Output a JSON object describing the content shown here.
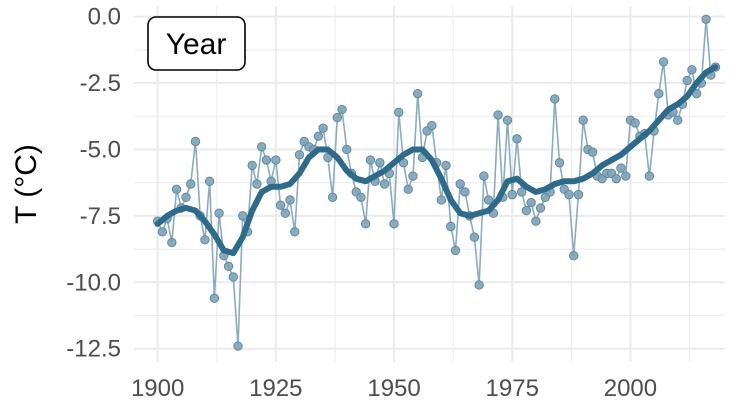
{
  "chart_data": {
    "type": "line",
    "title": "",
    "annotation": "Year",
    "xlabel": "",
    "ylabel": "T (°C)",
    "xlim": [
      1895,
      2020
    ],
    "ylim": [
      -13,
      0.4
    ],
    "x_ticks": [
      1900,
      1925,
      1950,
      1975,
      2000
    ],
    "y_ticks": [
      0.0,
      -2.5,
      -5.0,
      -7.5,
      -10.0,
      -12.5
    ],
    "y_tick_labels": [
      "0.0",
      "-2.5",
      "-5.0",
      "-7.5",
      "-10.0",
      "-12.5"
    ],
    "grid": true,
    "colors": {
      "points": "#8aacbf",
      "smooth": "#2e6b8a",
      "grid": "#ebebeb"
    },
    "series": [
      {
        "kind": "observed",
        "x": [
          1900,
          1901,
          1902,
          1903,
          1904,
          1905,
          1906,
          1907,
          1908,
          1909,
          1910,
          1911,
          1912,
          1913,
          1914,
          1915,
          1916,
          1917,
          1918,
          1919,
          1920,
          1921,
          1922,
          1923,
          1924,
          1925,
          1926,
          1927,
          1928,
          1929,
          1930,
          1931,
          1932,
          1933,
          1934,
          1935,
          1936,
          1937,
          1938,
          1939,
          1940,
          1941,
          1942,
          1943,
          1944,
          1945,
          1946,
          1947,
          1948,
          1949,
          1950,
          1951,
          1952,
          1953,
          1954,
          1955,
          1956,
          1957,
          1958,
          1959,
          1960,
          1961,
          1962,
          1963,
          1964,
          1965,
          1966,
          1967,
          1968,
          1969,
          1970,
          1971,
          1972,
          1973,
          1974,
          1975,
          1976,
          1977,
          1978,
          1979,
          1980,
          1981,
          1982,
          1983,
          1984,
          1985,
          1986,
          1987,
          1988,
          1989,
          1990,
          1991,
          1992,
          1993,
          1994,
          1995,
          1996,
          1997,
          1998,
          1999,
          2000,
          2001,
          2002,
          2003,
          2004,
          2005,
          2006,
          2007,
          2008,
          2009,
          2010,
          2011,
          2012,
          2013,
          2014,
          2015,
          2016,
          2017,
          2018
        ],
        "y": [
          -7.7,
          -8.1,
          -7.6,
          -8.5,
          -6.5,
          -7.2,
          -6.8,
          -6.3,
          -4.7,
          -7.5,
          -8.4,
          -6.2,
          -10.6,
          -7.4,
          -9.0,
          -9.4,
          -9.8,
          -12.4,
          -7.5,
          -8.1,
          -5.6,
          -6.3,
          -4.9,
          -5.4,
          -6.2,
          -5.4,
          -7.1,
          -7.4,
          -6.9,
          -8.1,
          -5.2,
          -4.7,
          -4.9,
          -5.0,
          -4.5,
          -4.2,
          -5.3,
          -6.8,
          -3.8,
          -3.5,
          -5.0,
          -5.9,
          -6.6,
          -6.8,
          -7.8,
          -5.4,
          -6.2,
          -5.5,
          -6.3,
          -5.9,
          -7.8,
          -3.6,
          -5.5,
          -6.5,
          -6.0,
          -2.9,
          -5.3,
          -4.3,
          -4.1,
          -5.5,
          -6.9,
          -5.6,
          -7.9,
          -8.8,
          -6.3,
          -6.6,
          -7.5,
          -8.3,
          -10.1,
          -6.0,
          -6.9,
          -7.4,
          -3.7,
          -6.8,
          -3.9,
          -6.7,
          -4.6,
          -6.6,
          -7.3,
          -7.0,
          -7.7,
          -7.2,
          -6.8,
          -6.6,
          -3.1,
          -5.5,
          -6.5,
          -6.7,
          -9.0,
          -6.7,
          -3.9,
          -5.0,
          -5.1,
          -6.0,
          -6.1,
          -5.9,
          -5.9,
          -6.1,
          -5.7,
          -6.0,
          -3.9,
          -4.0,
          -4.5,
          -4.4,
          -6.0,
          -4.3,
          -2.9,
          -1.7,
          -3.7,
          -3.6,
          -3.9,
          -3.3,
          -2.4,
          -2.0,
          -2.9,
          -2.5,
          -0.1,
          -2.2,
          -1.9
        ]
      },
      {
        "kind": "smooth",
        "x": [
          1900,
          1902,
          1904,
          1906,
          1908,
          1910,
          1912,
          1914,
          1916,
          1918,
          1920,
          1922,
          1924,
          1926,
          1928,
          1930,
          1932,
          1934,
          1936,
          1938,
          1940,
          1942,
          1944,
          1946,
          1948,
          1950,
          1952,
          1954,
          1956,
          1958,
          1960,
          1962,
          1964,
          1966,
          1968,
          1970,
          1972,
          1974,
          1976,
          1978,
          1980,
          1982,
          1984,
          1986,
          1988,
          1990,
          1992,
          1994,
          1996,
          1998,
          2000,
          2002,
          2004,
          2006,
          2008,
          2010,
          2012,
          2014,
          2016,
          2018
        ],
        "y": [
          -7.8,
          -7.5,
          -7.3,
          -7.2,
          -7.3,
          -7.7,
          -8.2,
          -8.8,
          -8.9,
          -8.3,
          -7.3,
          -6.6,
          -6.4,
          -6.4,
          -6.3,
          -5.9,
          -5.3,
          -5.0,
          -5.0,
          -5.3,
          -5.8,
          -6.1,
          -6.2,
          -6.0,
          -5.8,
          -5.5,
          -5.2,
          -5.0,
          -5.0,
          -5.4,
          -6.1,
          -6.9,
          -7.4,
          -7.5,
          -7.4,
          -7.3,
          -6.9,
          -6.2,
          -6.1,
          -6.4,
          -6.6,
          -6.5,
          -6.3,
          -6.2,
          -6.2,
          -6.1,
          -5.9,
          -5.6,
          -5.4,
          -5.2,
          -4.9,
          -4.6,
          -4.3,
          -3.9,
          -3.5,
          -3.3,
          -3.0,
          -2.5,
          -2.1,
          -1.9
        ]
      }
    ]
  }
}
